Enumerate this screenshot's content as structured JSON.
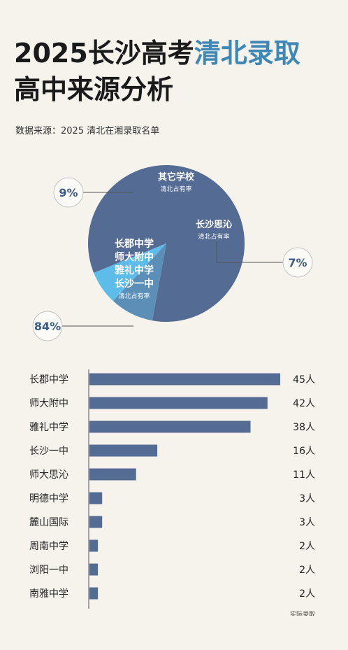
{
  "title": {
    "line1_prefix": "2025长沙高考",
    "line1_highlight": "清北录取",
    "line2": "高中来源分析"
  },
  "source": "数据来源：2025 清北在湘录取名单",
  "colors": {
    "dark": "#546b94",
    "mid": "#5b8fb8",
    "light": "#5ebcea",
    "bar": "#546b94",
    "highlight_text": "#3f87b4"
  },
  "chart_data": [
    {
      "type": "pie",
      "slices": [
        {
          "label_lines": [
            "长郡中学",
            "师大附中",
            "雅礼中学",
            "长沙一中"
          ],
          "sublabel": "清北占有率",
          "value": 84,
          "value_label": "84%",
          "color": "#546b94"
        },
        {
          "label_lines": [
            "其它学校"
          ],
          "sublabel": "清北占有率",
          "value": 9,
          "value_label": "9%",
          "color": "#5b8fb8"
        },
        {
          "label_lines": [
            "长沙思沁"
          ],
          "sublabel": "清北占有率",
          "value": 7,
          "value_label": "7%",
          "color": "#5ebcea"
        }
      ]
    },
    {
      "type": "bar",
      "orientation": "horizontal",
      "categories": [
        "长郡中学",
        "师大附中",
        "雅礼中学",
        "长沙一中",
        "师大思沁",
        "明德中学",
        "麓山国际",
        "周南中学",
        "浏阳一中",
        "南雅中学"
      ],
      "values": [
        45,
        42,
        38,
        16,
        11,
        3,
        3,
        2,
        2,
        2
      ],
      "value_labels": [
        "45人",
        "42人",
        "38人",
        "16人",
        "11人",
        "3人",
        "3人",
        "2人",
        "2人",
        "2人"
      ],
      "xlabel": "实际录取"
    }
  ]
}
